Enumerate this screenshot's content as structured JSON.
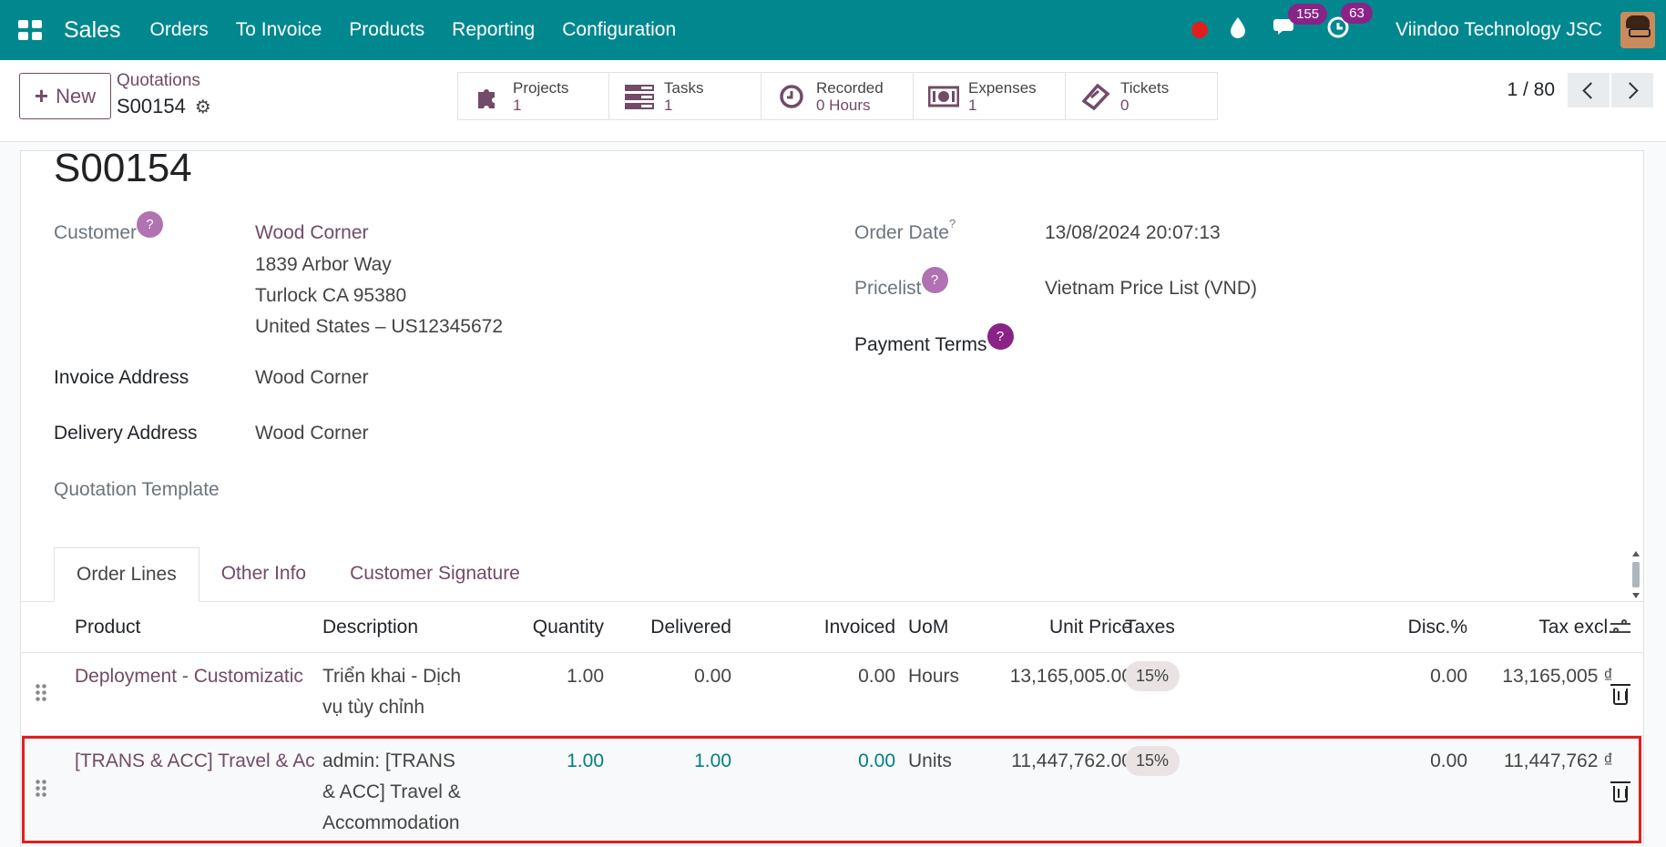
{
  "navbar": {
    "brand": "Sales",
    "menu": [
      "Orders",
      "To Invoice",
      "Products",
      "Reporting",
      "Configuration"
    ],
    "messages_count": "155",
    "activities_count": "63",
    "company": "Viindoo Technology JSC"
  },
  "control": {
    "new_label": "New",
    "breadcrumb_parent": "Quotations",
    "breadcrumb_current": "S00154",
    "smart_buttons": [
      {
        "label": "Projects",
        "value": "1",
        "icon": "puzzle-icon"
      },
      {
        "label": "Tasks",
        "value": "1",
        "icon": "tasks-icon"
      },
      {
        "label": "Recorded",
        "value": "0 Hours",
        "icon": "clock-icon"
      },
      {
        "label": "Expenses",
        "value": "1",
        "icon": "money-icon"
      },
      {
        "label": "Tickets",
        "value": "0",
        "icon": "ticket-icon"
      }
    ],
    "pager": "1 / 80"
  },
  "form": {
    "title": "S00154",
    "customer_label": "Customer",
    "customer_name": "Wood Corner",
    "customer_address_1": "1839 Arbor Way",
    "customer_address_2": "Turlock CA 95380",
    "customer_address_3": "United States – US12345672",
    "invoice_address_label": "Invoice Address",
    "invoice_address": "Wood Corner",
    "delivery_address_label": "Delivery Address",
    "delivery_address": "Wood Corner",
    "quotation_template_label": "Quotation Template",
    "order_date_label": "Order Date",
    "order_date_help": "?",
    "order_date": "13/08/2024 20:07:13",
    "pricelist_label": "Pricelist",
    "pricelist": "Vietnam Price List (VND)",
    "payment_terms_label": "Payment Terms",
    "help_mark": "?"
  },
  "tabs": [
    "Order Lines",
    "Other Info",
    "Customer Signature"
  ],
  "table": {
    "columns": [
      "Product",
      "Description",
      "Quantity",
      "Delivered",
      "Invoiced",
      "UoM",
      "Unit Price",
      "Taxes",
      "Disc.%",
      "Tax excl."
    ],
    "rows": [
      {
        "product": "Deployment - Customizatic",
        "description_1": "Triển khai - Dịch",
        "description_2": "vụ tùy chỉnh",
        "quantity": "1.00",
        "delivered": "0.00",
        "invoiced": "0.00",
        "uom": "Hours",
        "unit_price": "13,165,005.00",
        "taxes": "15%",
        "discount": "0.00",
        "subtotal": "13,165,005 ₫"
      },
      {
        "product": "[TRANS & ACC] Travel & Ac",
        "description_1": "admin: [TRANS",
        "description_2": "& ACC] Travel &",
        "description_3": "Accommodation",
        "quantity": "1.00",
        "delivered": "1.00",
        "invoiced": "0.00",
        "uom": "Units",
        "unit_price": "11,447,762.00",
        "taxes": "15%",
        "discount": "0.00",
        "subtotal": "11,447,762 ₫"
      }
    ]
  },
  "colors": {
    "navbar": "#01888f",
    "primary": "#714b67",
    "teal": "#017e84",
    "badge": "#8a2387",
    "highlight": "#e02020"
  }
}
